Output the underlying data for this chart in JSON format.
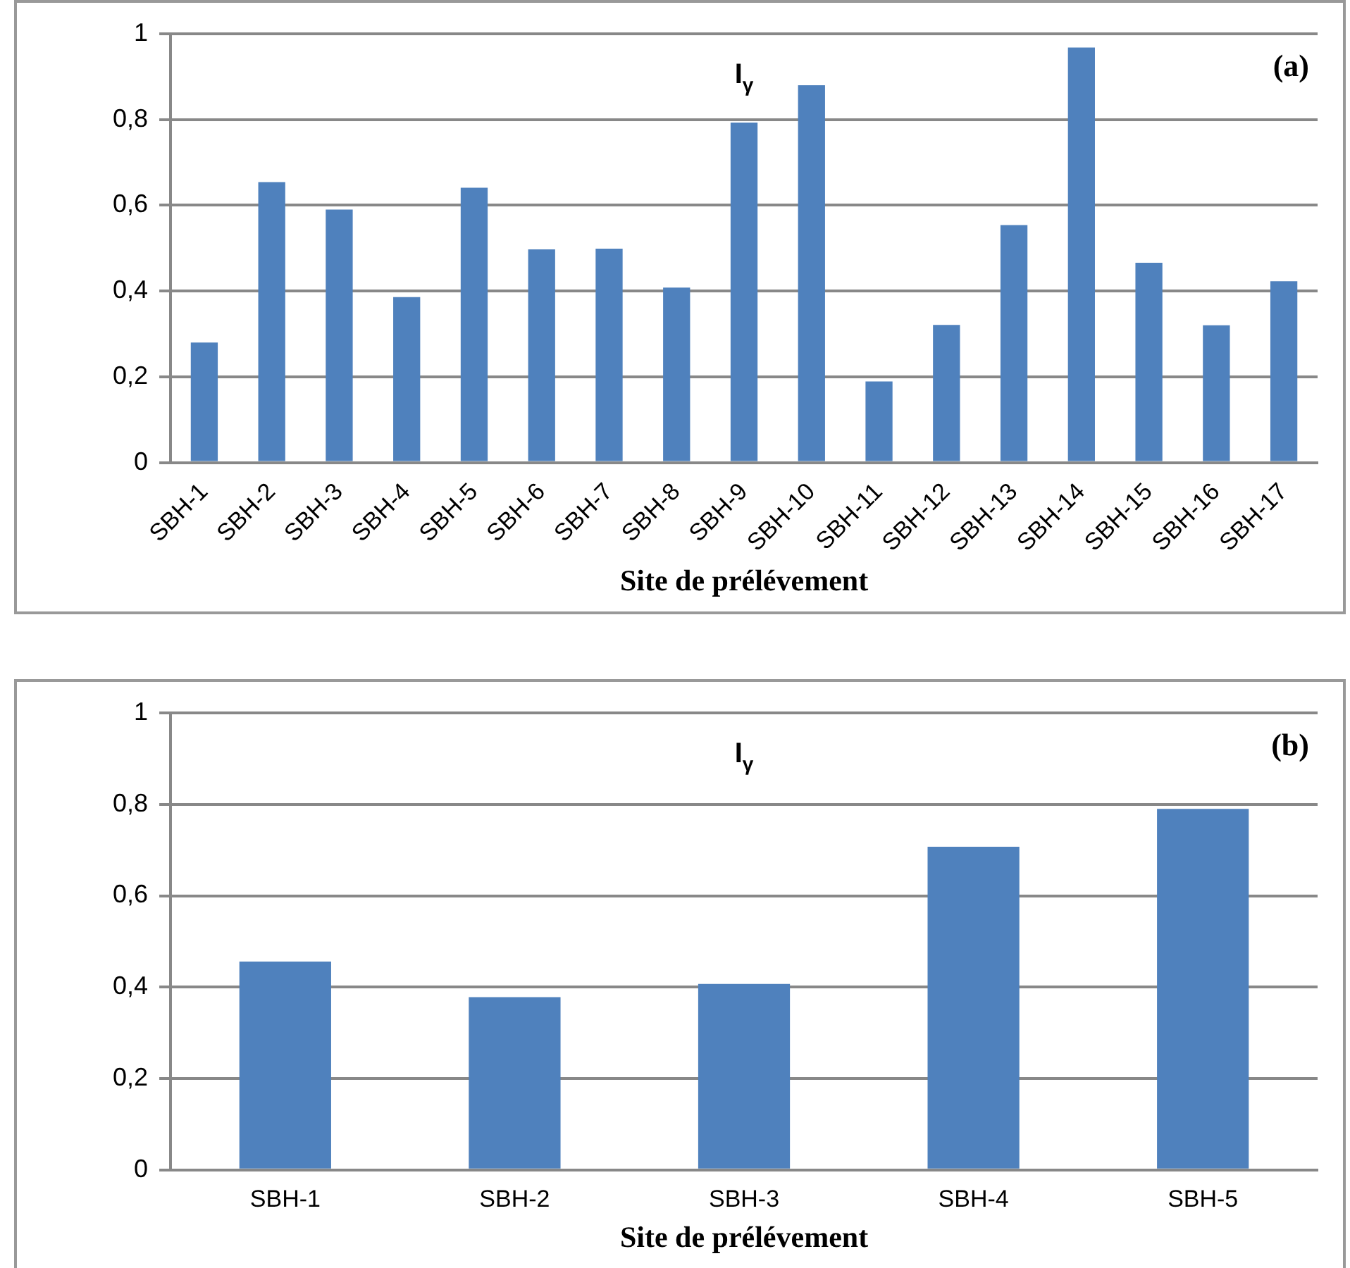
{
  "chart_data": [
    {
      "type": "bar",
      "title": "I$_{γ}$",
      "xlabel": "Site de prélévement",
      "annotations": [
        "(a)"
      ],
      "categories": [
        "SBH-1",
        "SBH-2",
        "SBH-3",
        "SBH-4",
        "SBH-5",
        "SBH-6",
        "SBH-7",
        "SBH-8",
        "SBH-9",
        "SBH-10",
        "SBH-11",
        "SBH-12",
        "SBH-13",
        "SBH-14",
        "SBH-15",
        "SBH-16",
        "SBH-17"
      ],
      "values": [
        0.28,
        0.654,
        0.59,
        0.386,
        0.641,
        0.497,
        0.499,
        0.408,
        0.793,
        0.88,
        0.189,
        0.321,
        0.554,
        0.968,
        0.466,
        0.32,
        0.423
      ],
      "color": "#4f81bd",
      "ylim": [
        0,
        1
      ],
      "yticks": [
        {
          "value": 0,
          "label": "0"
        },
        {
          "value": 0.2,
          "label": "0,2"
        },
        {
          "value": 0.4,
          "label": "0,4"
        },
        {
          "value": 0.6,
          "label": "0,6"
        },
        {
          "value": 0.8,
          "label": "0,8"
        },
        {
          "value": 1,
          "label": "1"
        }
      ],
      "grid": "y"
    },
    {
      "type": "bar",
      "title": "I$_{γ}$",
      "xlabel": "Site de prélévement",
      "annotations": [
        "(b)"
      ],
      "categories": [
        "SBH-1",
        "SBH-2",
        "SBH-3",
        "SBH-4",
        "SBH-5"
      ],
      "values": [
        0.456,
        0.378,
        0.407,
        0.707,
        0.79
      ],
      "color": "#4f81bd",
      "ylim": [
        0,
        1
      ],
      "yticks": [
        {
          "value": 0,
          "label": "0"
        },
        {
          "value": 0.2,
          "label": "0,2"
        },
        {
          "value": 0.4,
          "label": "0,4"
        },
        {
          "value": 0.6,
          "label": "0,6"
        },
        {
          "value": 0.8,
          "label": "0,8"
        },
        {
          "value": 1,
          "label": "1"
        }
      ],
      "grid": "y"
    }
  ]
}
